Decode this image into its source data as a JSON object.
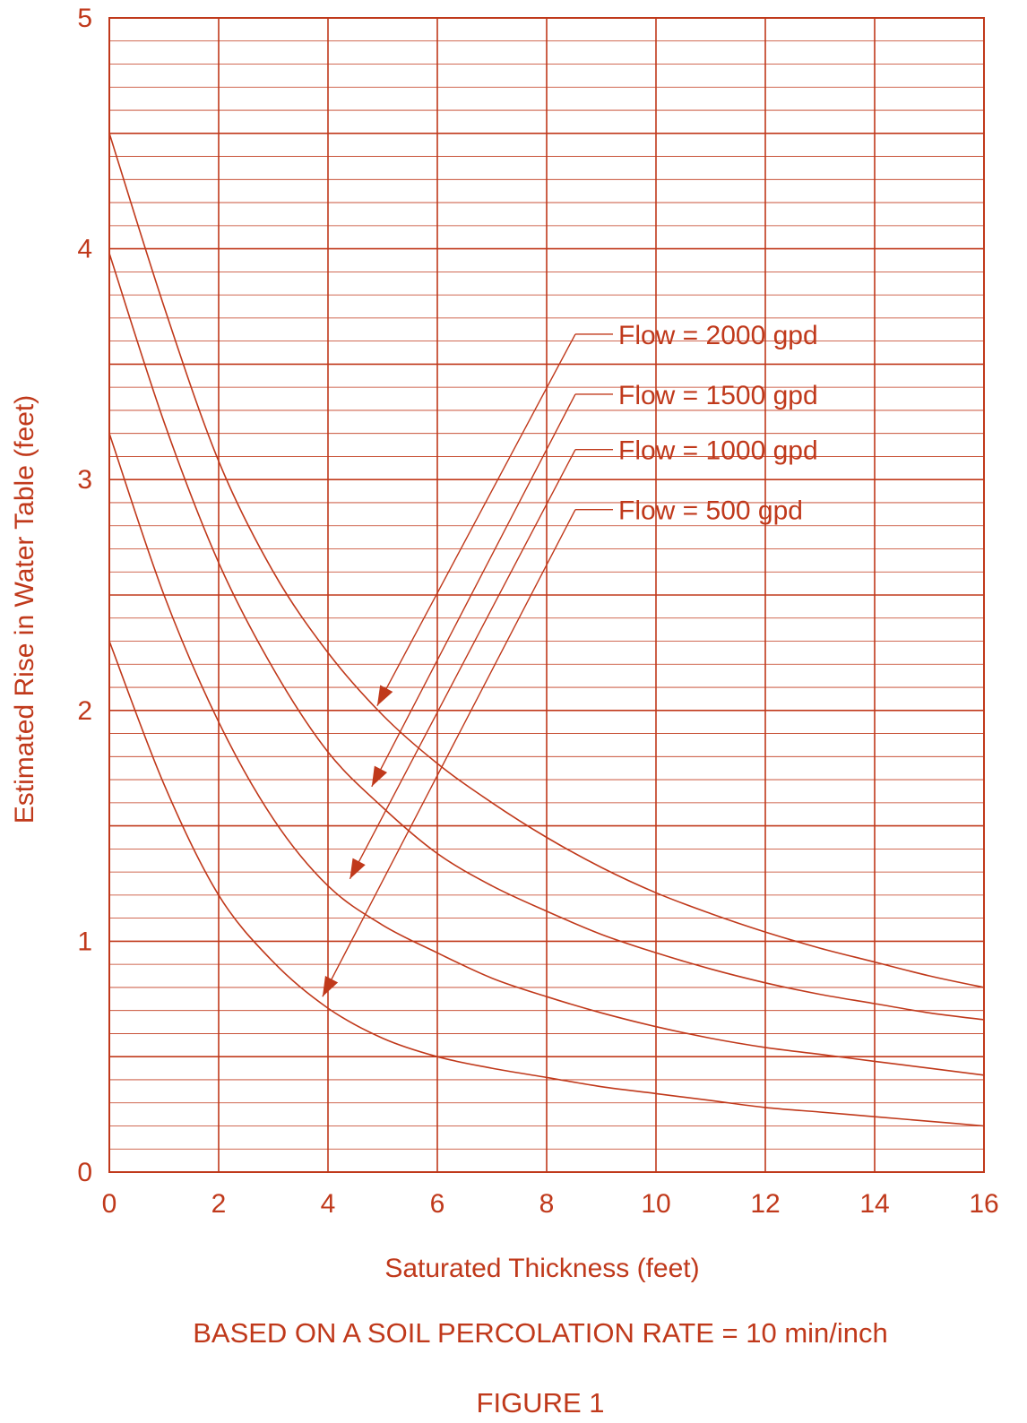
{
  "colors": {
    "ink": "#c0391b",
    "background": "#ffffff"
  },
  "chart_data": {
    "type": "line",
    "title": "",
    "xlabel": "Saturated Thickness (feet)",
    "ylabel": "Estimated Rise in Water Table (feet)",
    "xlim": [
      0,
      16
    ],
    "ylim": [
      0,
      5
    ],
    "x_ticks": [
      "0",
      "2",
      "4",
      "6",
      "8",
      "10",
      "12",
      "14",
      "16"
    ],
    "y_ticks": [
      "0",
      "1",
      "2",
      "3",
      "4",
      "5"
    ],
    "x_major_step": 2,
    "y_major_step": 0.5,
    "y_minor_step": 0.1,
    "grid": true,
    "legend": "labels with arrows pointing to curves",
    "series": [
      {
        "name": "Flow = 2000 gpd",
        "x": [
          0,
          1,
          2,
          3,
          4,
          5,
          6,
          7,
          8,
          9,
          10,
          11,
          12,
          13,
          14,
          15,
          16
        ],
        "y": [
          4.5,
          3.75,
          3.08,
          2.6,
          2.25,
          1.98,
          1.77,
          1.6,
          1.45,
          1.32,
          1.21,
          1.12,
          1.04,
          0.97,
          0.91,
          0.85,
          0.8
        ]
      },
      {
        "name": "Flow = 1500 gpd",
        "x": [
          0,
          1,
          2,
          3,
          4,
          5,
          6,
          7,
          8,
          9,
          10,
          11,
          12,
          13,
          14,
          15,
          16
        ],
        "y": [
          3.98,
          3.25,
          2.64,
          2.18,
          1.82,
          1.58,
          1.38,
          1.24,
          1.13,
          1.03,
          0.95,
          0.88,
          0.82,
          0.77,
          0.73,
          0.69,
          0.66
        ]
      },
      {
        "name": "Flow = 1000 gpd",
        "x": [
          0,
          1,
          2,
          3,
          4,
          5,
          6,
          7,
          8,
          9,
          10,
          11,
          12,
          13,
          14,
          15,
          16
        ],
        "y": [
          3.2,
          2.5,
          1.95,
          1.53,
          1.24,
          1.07,
          0.95,
          0.84,
          0.76,
          0.69,
          0.63,
          0.58,
          0.54,
          0.51,
          0.48,
          0.45,
          0.42
        ]
      },
      {
        "name": "Flow = 500 gpd",
        "x": [
          0,
          1,
          2,
          3,
          4,
          5,
          6,
          7,
          8,
          9,
          10,
          11,
          12,
          13,
          14,
          15,
          16
        ],
        "y": [
          2.3,
          1.68,
          1.2,
          0.91,
          0.71,
          0.58,
          0.5,
          0.45,
          0.41,
          0.37,
          0.34,
          0.31,
          0.28,
          0.26,
          0.24,
          0.22,
          0.2
        ]
      }
    ],
    "annotations": [
      {
        "text": "Flow = 2000 gpd",
        "series": 0,
        "points_to": [
          4.9,
          2.02
        ],
        "label_y": 3.63
      },
      {
        "text": "Flow = 1500 gpd",
        "series": 1,
        "points_to": [
          4.8,
          1.67
        ],
        "label_y": 3.37
      },
      {
        "text": "Flow = 1000 gpd",
        "series": 2,
        "points_to": [
          4.4,
          1.27
        ],
        "label_y": 3.13
      },
      {
        "text": "Flow = 500 gpd",
        "series": 3,
        "points_to": [
          3.9,
          0.76
        ],
        "label_y": 2.87
      }
    ]
  },
  "footer": {
    "note": "BASED ON A SOIL PERCOLATION RATE = 10 min/inch",
    "figure_label": "FIGURE 1"
  }
}
